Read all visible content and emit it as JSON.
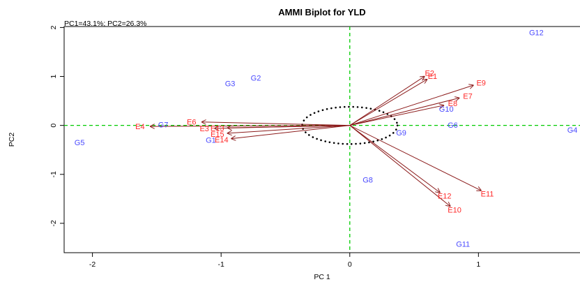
{
  "chart_data": {
    "type": "scatter",
    "title": "AMMI Biplot for YLD",
    "subtitle": "PC1=43.1%; PC2=26.3%",
    "xlabel": "PC 1",
    "ylabel": "PC2",
    "xlim": [
      -2.22,
      1.8
    ],
    "ylim": [
      -2.6,
      2.02
    ],
    "xticks": [
      -2,
      -1,
      0,
      1
    ],
    "xtick_labels": [
      "-2",
      "-1",
      "0",
      "1"
    ],
    "yticks": [
      2,
      1,
      0,
      -1,
      -2
    ],
    "ytick_labels": [
      "2",
      "1",
      "0",
      "-1",
      "-2"
    ],
    "reference_lines": {
      "x": 0,
      "y": 0,
      "color": "#00cc00",
      "style": "dashed"
    },
    "circle": {
      "center": [
        0,
        0
      ],
      "radius_x": 0.37,
      "radius_y": 0.38,
      "style": "dotted"
    },
    "arrow_color": "#8b1a1a",
    "genotype_color": "#4a4aff",
    "environment_color": "#ff2a2a",
    "genotypes": [
      {
        "label": "G12",
        "x": 1.45,
        "y": 1.9
      },
      {
        "label": "G2",
        "x": -0.73,
        "y": 0.97
      },
      {
        "label": "G3",
        "x": -0.93,
        "y": 0.86
      },
      {
        "label": "G10",
        "x": 0.75,
        "y": 0.34
      },
      {
        "label": "G6",
        "x": 0.8,
        "y": 0.01
      },
      {
        "label": "G4",
        "x": 1.73,
        "y": -0.09
      },
      {
        "label": "G9",
        "x": 0.4,
        "y": -0.15
      },
      {
        "label": "G7",
        "x": -1.45,
        "y": 0.02
      },
      {
        "label": "G5",
        "x": -2.1,
        "y": -0.35
      },
      {
        "label": "G1",
        "x": -1.08,
        "y": -0.3
      },
      {
        "label": "G8",
        "x": 0.14,
        "y": -1.11
      },
      {
        "label": "G11",
        "x": 0.88,
        "y": -2.42
      }
    ],
    "environments": [
      {
        "label": "E2",
        "x": 0.58,
        "y": 1.0
      },
      {
        "label": "E1",
        "x": 0.6,
        "y": 0.94
      },
      {
        "label": "E9",
        "x": 0.96,
        "y": 0.82
      },
      {
        "label": "E7",
        "x": 0.85,
        "y": 0.56
      },
      {
        "label": "E8",
        "x": 0.73,
        "y": 0.41
      },
      {
        "label": "E11",
        "x": 1.02,
        "y": -1.33
      },
      {
        "label": "E12",
        "x": 0.7,
        "y": -1.37
      },
      {
        "label": "E10",
        "x": 0.78,
        "y": -1.65
      },
      {
        "label": "E4",
        "x": -1.55,
        "y": -0.02
      },
      {
        "label": "E6",
        "x": -1.15,
        "y": 0.07
      },
      {
        "label": "E3",
        "x": -1.05,
        "y": -0.06
      },
      {
        "label": "E13",
        "x": -0.95,
        "y": -0.05
      },
      {
        "label": "E15",
        "x": -0.95,
        "y": -0.16
      },
      {
        "label": "E14",
        "x": -0.92,
        "y": -0.27
      }
    ]
  }
}
